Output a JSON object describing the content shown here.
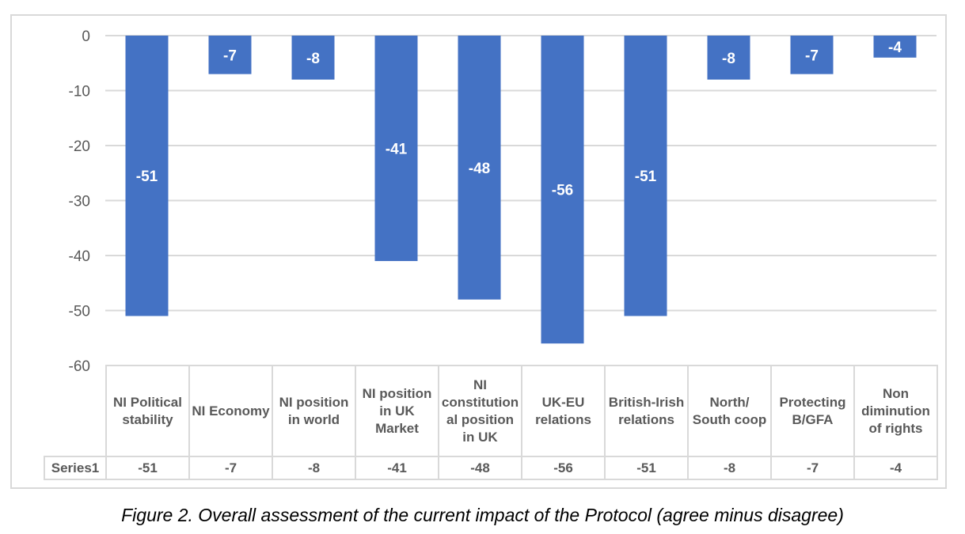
{
  "chart_data": {
    "type": "bar",
    "title": "",
    "caption": "Figure 2. Overall assessment of the current impact of the Protocol (agree minus disagree)",
    "categories": [
      "NI Political stability",
      "NI Economy",
      "NI position in world",
      "NI position in UK Market",
      "NI constitutional position in UK",
      "UK-EU relations",
      "British-Irish relations",
      "North/ South coop",
      "Protecting B/GFA",
      "Non diminution of rights"
    ],
    "series": [
      {
        "name": "Series1",
        "values": [
          -51,
          -7,
          -8,
          -41,
          -48,
          -56,
          -51,
          -8,
          -7,
          -4
        ]
      }
    ],
    "yticks": [
      "0",
      "-10",
      "-20",
      "-30",
      "-40",
      "-50",
      "-60"
    ],
    "ylim": [
      -60,
      0
    ],
    "grid": true,
    "data_table": true,
    "bar_color": "#4472c4"
  }
}
